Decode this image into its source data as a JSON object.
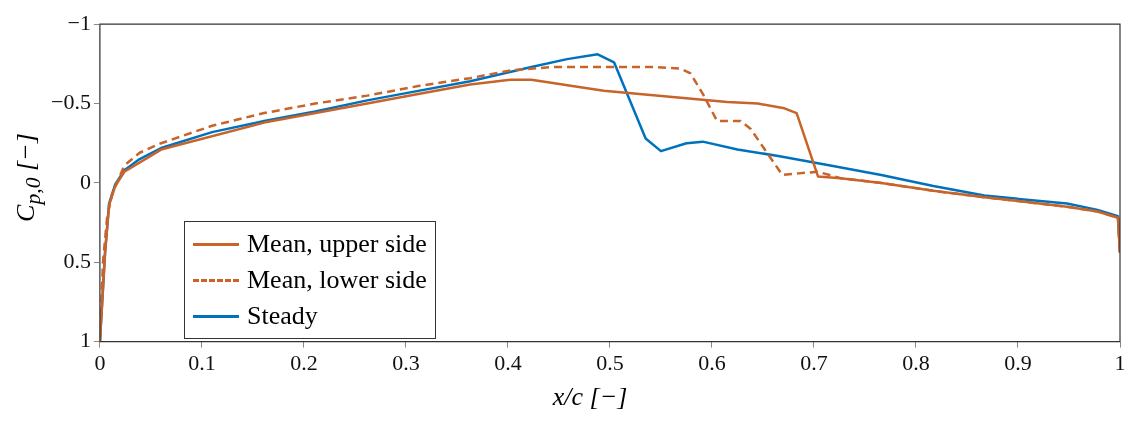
{
  "chart_data": {
    "type": "line",
    "xlabel": "x/c [−]",
    "ylabel": "C$_{p,0}$ [−]",
    "xlim": [
      0,
      1
    ],
    "xticks": [
      0,
      0.1,
      0.2,
      0.3,
      0.4,
      0.5,
      0.6,
      0.7,
      0.8,
      0.9,
      1
    ],
    "ylim": [
      1,
      -1
    ],
    "yticks": [
      -1,
      -0.5,
      0,
      0.5,
      1
    ],
    "grid": false,
    "legend": "bottom left",
    "marker": "none",
    "series": [
      {
        "name": "Mean, upper side",
        "color": "#c8642a",
        "line_style": "solid",
        "x": [
          0,
          0.005,
          0.009,
          0.015,
          0.024,
          0.06,
          0.161,
          0.262,
          0.312,
          0.363,
          0.403,
          0.423,
          0.444,
          0.463,
          0.494,
          0.564,
          0.615,
          0.645,
          0.671,
          0.683,
          0.704,
          0.726,
          0.766,
          0.817,
          0.867,
          0.948,
          0.978,
          0.998,
          1.0
        ],
        "values": [
          1,
          0.45,
          0.14,
          0.02,
          -0.07,
          -0.21,
          -0.38,
          -0.5,
          -0.56,
          -0.62,
          -0.65,
          -0.65,
          -0.63,
          -0.61,
          -0.58,
          -0.54,
          -0.51,
          -0.5,
          -0.47,
          -0.44,
          -0.04,
          -0.03,
          0.0,
          0.05,
          0.09,
          0.15,
          0.18,
          0.22,
          0.44
        ]
      },
      {
        "name": "Mean, lower side",
        "color": "#c8642a",
        "line_style": "dashed",
        "x": [
          0,
          0.003,
          0.007,
          0.012,
          0.024,
          0.039,
          0.06,
          0.11,
          0.161,
          0.211,
          0.262,
          0.312,
          0.363,
          0.403,
          0.444,
          0.484,
          0.544,
          0.569,
          0.579,
          0.592,
          0.605,
          0.628,
          0.638,
          0.655,
          0.669,
          0.685,
          0.704,
          0.726,
          0.766,
          0.817,
          0.867,
          0.948,
          0.978,
          0.998,
          1.0
        ],
        "values": [
          1,
          0.5,
          0.22,
          0.07,
          -0.11,
          -0.19,
          -0.25,
          -0.36,
          -0.44,
          -0.5,
          -0.55,
          -0.61,
          -0.66,
          -0.71,
          -0.73,
          -0.73,
          -0.73,
          -0.72,
          -0.69,
          -0.55,
          -0.39,
          -0.39,
          -0.34,
          -0.18,
          -0.05,
          -0.06,
          -0.07,
          -0.03,
          0.0,
          0.05,
          0.09,
          0.15,
          0.18,
          0.22,
          0.44
        ]
      },
      {
        "name": "Steady",
        "color": "#0072bd",
        "line_style": "solid",
        "x": [
          0,
          0.005,
          0.009,
          0.015,
          0.024,
          0.039,
          0.06,
          0.11,
          0.161,
          0.211,
          0.262,
          0.312,
          0.363,
          0.403,
          0.423,
          0.458,
          0.488,
          0.504,
          0.535,
          0.55,
          0.575,
          0.591,
          0.625,
          0.665,
          0.716,
          0.766,
          0.817,
          0.867,
          0.948,
          0.978,
          0.998,
          1.0
        ],
        "values": [
          1,
          0.44,
          0.13,
          0.01,
          -0.08,
          -0.15,
          -0.22,
          -0.32,
          -0.39,
          -0.45,
          -0.52,
          -0.58,
          -0.64,
          -0.7,
          -0.73,
          -0.78,
          -0.81,
          -0.76,
          -0.28,
          -0.2,
          -0.25,
          -0.26,
          -0.21,
          -0.17,
          -0.11,
          -0.05,
          0.02,
          0.08,
          0.13,
          0.17,
          0.21,
          0.44
        ]
      }
    ]
  }
}
